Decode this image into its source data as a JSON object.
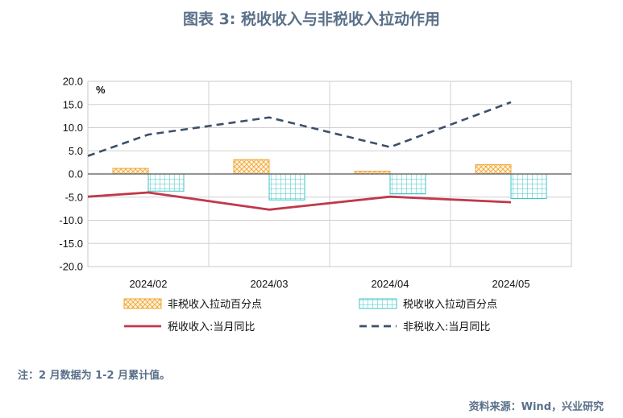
{
  "header": {
    "title": "图表 3:  税收收入与非税收入拉动作用"
  },
  "footer": {
    "note": "注：2 月数据为 1-2 月累计值。",
    "source": "资料来源：Wind，兴业研究"
  },
  "chart_data": {
    "type": "bar",
    "categories": [
      "2024/02",
      "2024/03",
      "2024/04",
      "2024/05"
    ],
    "unit": "%",
    "ylim": [
      -20,
      20
    ],
    "yticks": [
      "20.0",
      "15.0",
      "10.0",
      "5.0",
      "0.0",
      "-5.0",
      "-10.0",
      "-15.0",
      "-20.0"
    ],
    "grid": true,
    "legend_position": "bottom",
    "series": [
      {
        "name": "非税收入拉动百分点",
        "kind": "bar",
        "color": "#f0a531",
        "pattern": "crosshatch",
        "values": [
          1.2,
          3.1,
          0.6,
          2.0
        ]
      },
      {
        "name": "税收收入拉动百分点",
        "kind": "bar",
        "color": "#3fc4c4",
        "pattern": "grid",
        "values": [
          -3.7,
          -5.6,
          -4.3,
          -5.3
        ]
      },
      {
        "name": "税收收入:当月同比",
        "kind": "line",
        "color": "#c0394b",
        "style": "solid",
        "values": [
          -4.0,
          -7.7,
          -4.9,
          -6.1
        ]
      },
      {
        "name": "非税收入:当月同比",
        "kind": "line",
        "color": "#3d4f6b",
        "style": "dashed",
        "values": [
          8.5,
          12.2,
          5.8,
          15.5
        ]
      }
    ],
    "line_extension": {
      "solid_start": -4.9,
      "dashed_start": 3.9
    }
  }
}
